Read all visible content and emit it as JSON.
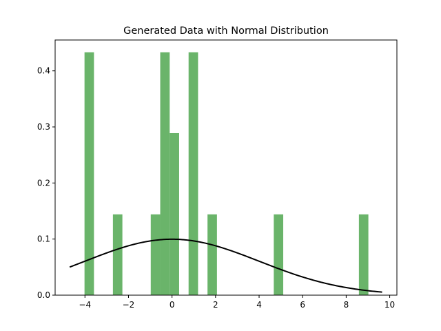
{
  "chart_data": {
    "type": "bar",
    "title": "Generated Data with Normal Distribution",
    "xlabel": "",
    "ylabel": "",
    "xlim": [
      -5.37,
      10.33
    ],
    "ylim": [
      0,
      0.455
    ],
    "xticks": [
      -4,
      -2,
      0,
      2,
      4,
      6,
      8,
      10
    ],
    "xtick_labels": [
      "−4",
      "−2",
      "0",
      "2",
      "4",
      "6",
      "8",
      "10"
    ],
    "yticks": [
      0.0,
      0.1,
      0.2,
      0.3,
      0.4
    ],
    "ytick_labels": [
      "0.0",
      "0.1",
      "0.2",
      "0.3",
      "0.4"
    ],
    "grid": false,
    "histogram": {
      "bin_width": 0.4345,
      "color": "#6ab46a",
      "bins": [
        {
          "x0": -4.02,
          "height": 0.433
        },
        {
          "x0": -2.715,
          "height": 0.144
        },
        {
          "x0": -0.977,
          "height": 0.144
        },
        {
          "x0": -0.542,
          "height": 0.433
        },
        {
          "x0": -0.108,
          "height": 0.289
        },
        {
          "x0": 0.761,
          "height": 0.433
        },
        {
          "x0": 1.63,
          "height": 0.144
        },
        {
          "x0": 4.674,
          "height": 0.144
        },
        {
          "x0": 8.585,
          "height": 0.144
        }
      ]
    },
    "curve": {
      "type": "normal_pdf",
      "mean": 0.0,
      "std": 4.0,
      "x_range": [
        -4.7,
        9.65
      ],
      "color": "#000000"
    }
  }
}
